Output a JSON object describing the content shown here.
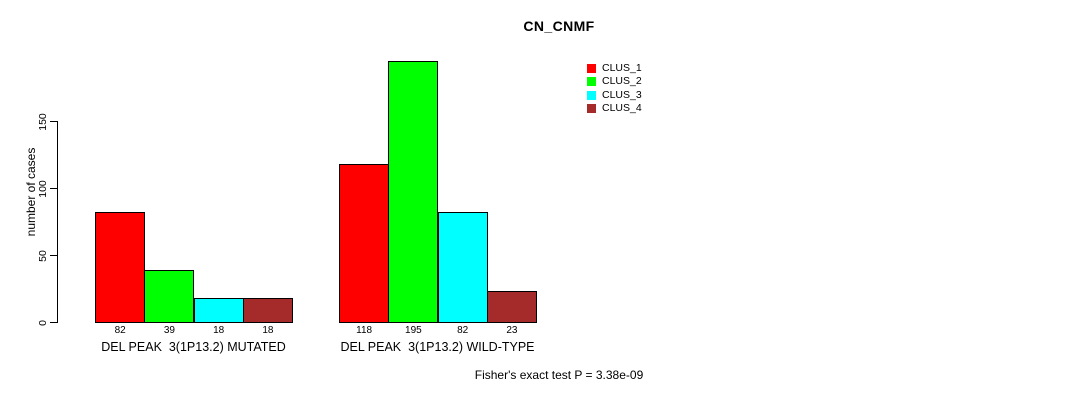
{
  "chart_data": {
    "type": "bar",
    "title": "CN_CNMF",
    "ylabel": "number of cases",
    "xlabel": "",
    "yticks": [
      0,
      50,
      100,
      150
    ],
    "ylim": [
      0,
      150
    ],
    "grid": false,
    "legend_position": "top-right",
    "categories": [
      "DEL PEAK  3(1P13.2) MUTATED",
      "DEL PEAK  3(1P13.2) WILD-TYPE"
    ],
    "series": [
      {
        "name": "CLUS_1",
        "color": "#FF0000",
        "values": [
          82,
          118
        ]
      },
      {
        "name": "CLUS_2",
        "color": "#00FF00",
        "values": [
          39,
          195
        ]
      },
      {
        "name": "CLUS_3",
        "color": "#00FFFF",
        "values": [
          18,
          82
        ]
      },
      {
        "name": "CLUS_4",
        "color": "#A52A2A",
        "values": [
          18,
          23
        ]
      }
    ],
    "bar_value_labels": [
      [
        82,
        39,
        18,
        18
      ],
      [
        118,
        195,
        82,
        23
      ]
    ],
    "footnote": "Fisher's exact test P = 3.38e-09"
  }
}
